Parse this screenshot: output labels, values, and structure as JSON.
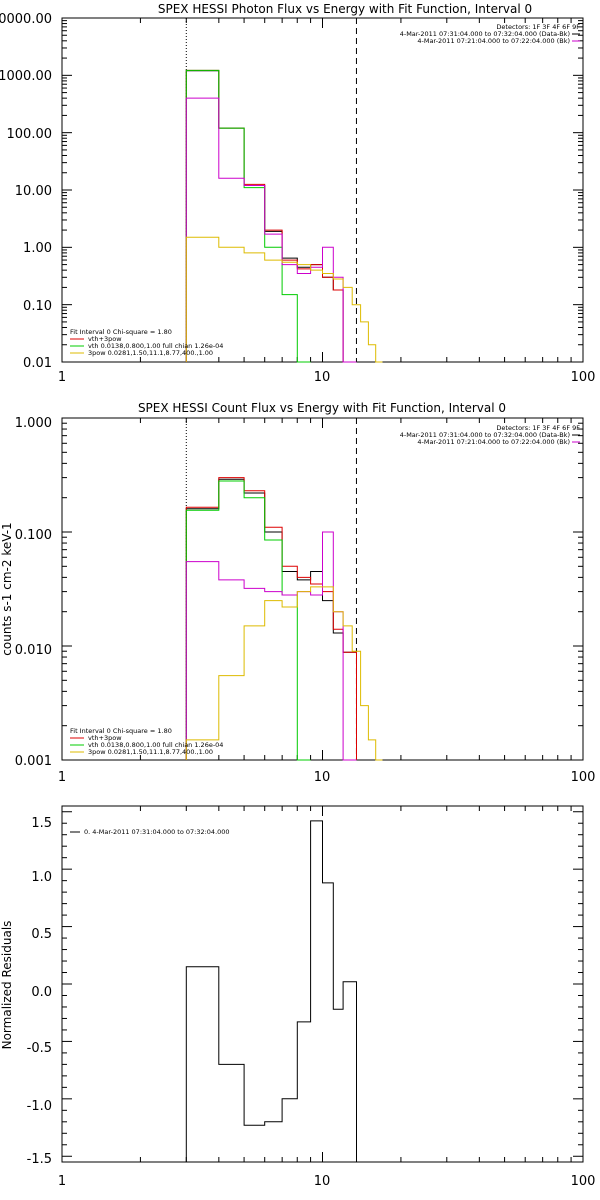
{
  "chart_data": [
    {
      "type": "line",
      "title": "SPEX HESSI Photon Flux vs Energy with Fit Function, Interval 0",
      "xscale": "log",
      "yscale": "log",
      "xlim": [
        1,
        100
      ],
      "ylim": [
        0.01,
        10000
      ],
      "x_ticks": [
        "1",
        "10",
        "100"
      ],
      "y_ticks": [
        "0.01",
        "0.10",
        "1.00",
        "10.00",
        "100.00",
        "1000.00",
        "0000.00"
      ],
      "vlines": [
        {
          "x": 3.0,
          "style": "dotted"
        },
        {
          "x": 13.5,
          "style": "dashed"
        }
      ],
      "legend_topright": [
        {
          "text": "Detectors: 1F 3F 4F 6F 9F",
          "color": "#000000"
        },
        {
          "text": "4-Mar-2011 07:31:04.000 to 07:32:04.000 (Data-Bk)",
          "color": "#000000"
        },
        {
          "text": "4-Mar-2011 07:21:04.000 to 07:22:04.000 (Bk)",
          "color": "#cc00cc"
        }
      ],
      "legend_bottomleft": [
        {
          "text": "Fit Interval 0   Chi-square = 1.80",
          "color": "#000000"
        },
        {
          "text": "vth+3pow",
          "color": "#dd0000"
        },
        {
          "text": "vth 0.0138,0.800,1.00  full chian 1.26e-04",
          "color": "#00cc00"
        },
        {
          "text": "3pow 0.0281,1.50,11.1,8.77,400.,1.00",
          "color": "#ddbb00"
        }
      ],
      "series": [
        {
          "color": "#000000",
          "edges": [
            3,
            4,
            5,
            6,
            7,
            8,
            9,
            10,
            11,
            12,
            13.5
          ],
          "values": [
            1200,
            120,
            12,
            1.9,
            0.65,
            0.45,
            0.5,
            0.3,
            0.18,
            0.01
          ]
        },
        {
          "color": "#dd0000",
          "edges": [
            3,
            4,
            5,
            6,
            7,
            8,
            9,
            10,
            11,
            12,
            13.5
          ],
          "values": [
            1220,
            120,
            12.5,
            2.0,
            0.6,
            0.42,
            0.5,
            0.3,
            0.18,
            0.01
          ]
        },
        {
          "color": "#00cc00",
          "edges": [
            3,
            4,
            5,
            6,
            7,
            8,
            9
          ],
          "values": [
            1220,
            120,
            11,
            1.0,
            0.15,
            0.01
          ]
        },
        {
          "color": "#cc00cc",
          "edges": [
            3,
            4,
            5,
            6,
            7,
            8,
            9,
            10,
            11,
            12,
            13.5
          ],
          "values": [
            400,
            16,
            12,
            1.7,
            0.5,
            0.35,
            0.45,
            1.0,
            0.3,
            0.01
          ]
        },
        {
          "color": "#ddbb00",
          "edges": [
            3,
            4,
            5,
            6,
            7,
            8,
            9,
            10,
            11,
            12,
            13,
            14,
            15,
            16,
            17
          ],
          "values": [
            1.5,
            1.0,
            0.8,
            0.6,
            0.55,
            0.5,
            0.4,
            0.35,
            0.28,
            0.2,
            0.1,
            0.05,
            0.02,
            0.01
          ]
        }
      ]
    },
    {
      "type": "line",
      "title": "SPEX HESSI Count Flux vs Energy with Fit Function, Interval 0",
      "ylabel": "counts s-1 cm-2 keV-1",
      "xscale": "log",
      "yscale": "log",
      "xlim": [
        1,
        100
      ],
      "ylim": [
        0.001,
        1
      ],
      "x_ticks": [
        "1",
        "10",
        "100"
      ],
      "y_ticks": [
        "0.001",
        "0.010",
        "0.100",
        "1.000"
      ],
      "vlines": [
        {
          "x": 3.0,
          "style": "dotted"
        },
        {
          "x": 13.5,
          "style": "dashed"
        }
      ],
      "legend_topright": [
        {
          "text": "Detectors: 1F 3F 4F 6F 9F",
          "color": "#000000"
        },
        {
          "text": "4-Mar-2011 07:31:04.000 to 07:32:04.000 (Data-Bk)",
          "color": "#000000"
        },
        {
          "text": "4-Mar-2011 07:21:04.000 to 07:22:04.000 (Bk)",
          "color": "#cc00cc"
        }
      ],
      "legend_bottomleft": [
        {
          "text": "Fit Interval 0   Chi-square = 1.80",
          "color": "#000000"
        },
        {
          "text": "vth+3pow",
          "color": "#dd0000"
        },
        {
          "text": "vth 0.0138,0.800,1.00  full chian 1.26e-04",
          "color": "#00cc00"
        },
        {
          "text": "3pow 0.0281,1.50,11.1,8.77,400.,1.00",
          "color": "#ddbb00"
        }
      ],
      "series": [
        {
          "color": "#000000",
          "edges": [
            3,
            4,
            5,
            6,
            7,
            8,
            9,
            10,
            11,
            12,
            13.5
          ],
          "values": [
            0.16,
            0.29,
            0.22,
            0.1,
            0.045,
            0.038,
            0.045,
            0.025,
            0.013,
            0.0088
          ]
        },
        {
          "color": "#dd0000",
          "edges": [
            3,
            4,
            5,
            6,
            7,
            8,
            9,
            10,
            11,
            12,
            13.5
          ],
          "values": [
            0.165,
            0.3,
            0.23,
            0.11,
            0.05,
            0.04,
            0.035,
            0.03,
            0.014,
            0.0088
          ]
        },
        {
          "color": "#00cc00",
          "edges": [
            3,
            4,
            5,
            6,
            7,
            8,
            9
          ],
          "values": [
            0.155,
            0.28,
            0.2,
            0.085,
            0.028,
            0.001
          ]
        },
        {
          "color": "#cc00cc",
          "edges": [
            3,
            4,
            5,
            6,
            7,
            8,
            9,
            10,
            11,
            12,
            13.5
          ],
          "values": [
            0.055,
            0.038,
            0.032,
            0.03,
            0.028,
            0.03,
            0.028,
            0.1,
            0.02,
            0.001
          ]
        },
        {
          "color": "#ddbb00",
          "edges": [
            3,
            4,
            5,
            6,
            7,
            8,
            9,
            10,
            11,
            12,
            13,
            14,
            15,
            16,
            17
          ],
          "values": [
            0.0015,
            0.0055,
            0.015,
            0.025,
            0.022,
            0.03,
            0.033,
            0.033,
            0.02,
            0.015,
            0.009,
            0.003,
            0.0015,
            0.001
          ]
        }
      ]
    },
    {
      "type": "line",
      "ylabel": "Normalized Residuals",
      "xscale": "log",
      "yscale": "linear",
      "xlim": [
        1,
        100
      ],
      "ylim": [
        -1.55,
        1.55
      ],
      "x_ticks": [
        "1",
        "10",
        "100"
      ],
      "y_ticks": [
        "-1.5",
        "-1.0",
        "-0.5",
        "0.0",
        "0.5",
        "1.0",
        "1.5"
      ],
      "legend": [
        {
          "text": "0. 4-Mar-2011 07:31:04.000 to 07:32:04.000",
          "color": "#000000"
        }
      ],
      "series": [
        {
          "color": "#000000",
          "edges": [
            3,
            4,
            5,
            6,
            7,
            8,
            9,
            10,
            11,
            12,
            13.5
          ],
          "values": [
            0.15,
            -0.7,
            -1.23,
            -1.2,
            -1.0,
            -0.33,
            1.42,
            0.88,
            -0.22,
            0.02
          ]
        }
      ]
    }
  ]
}
